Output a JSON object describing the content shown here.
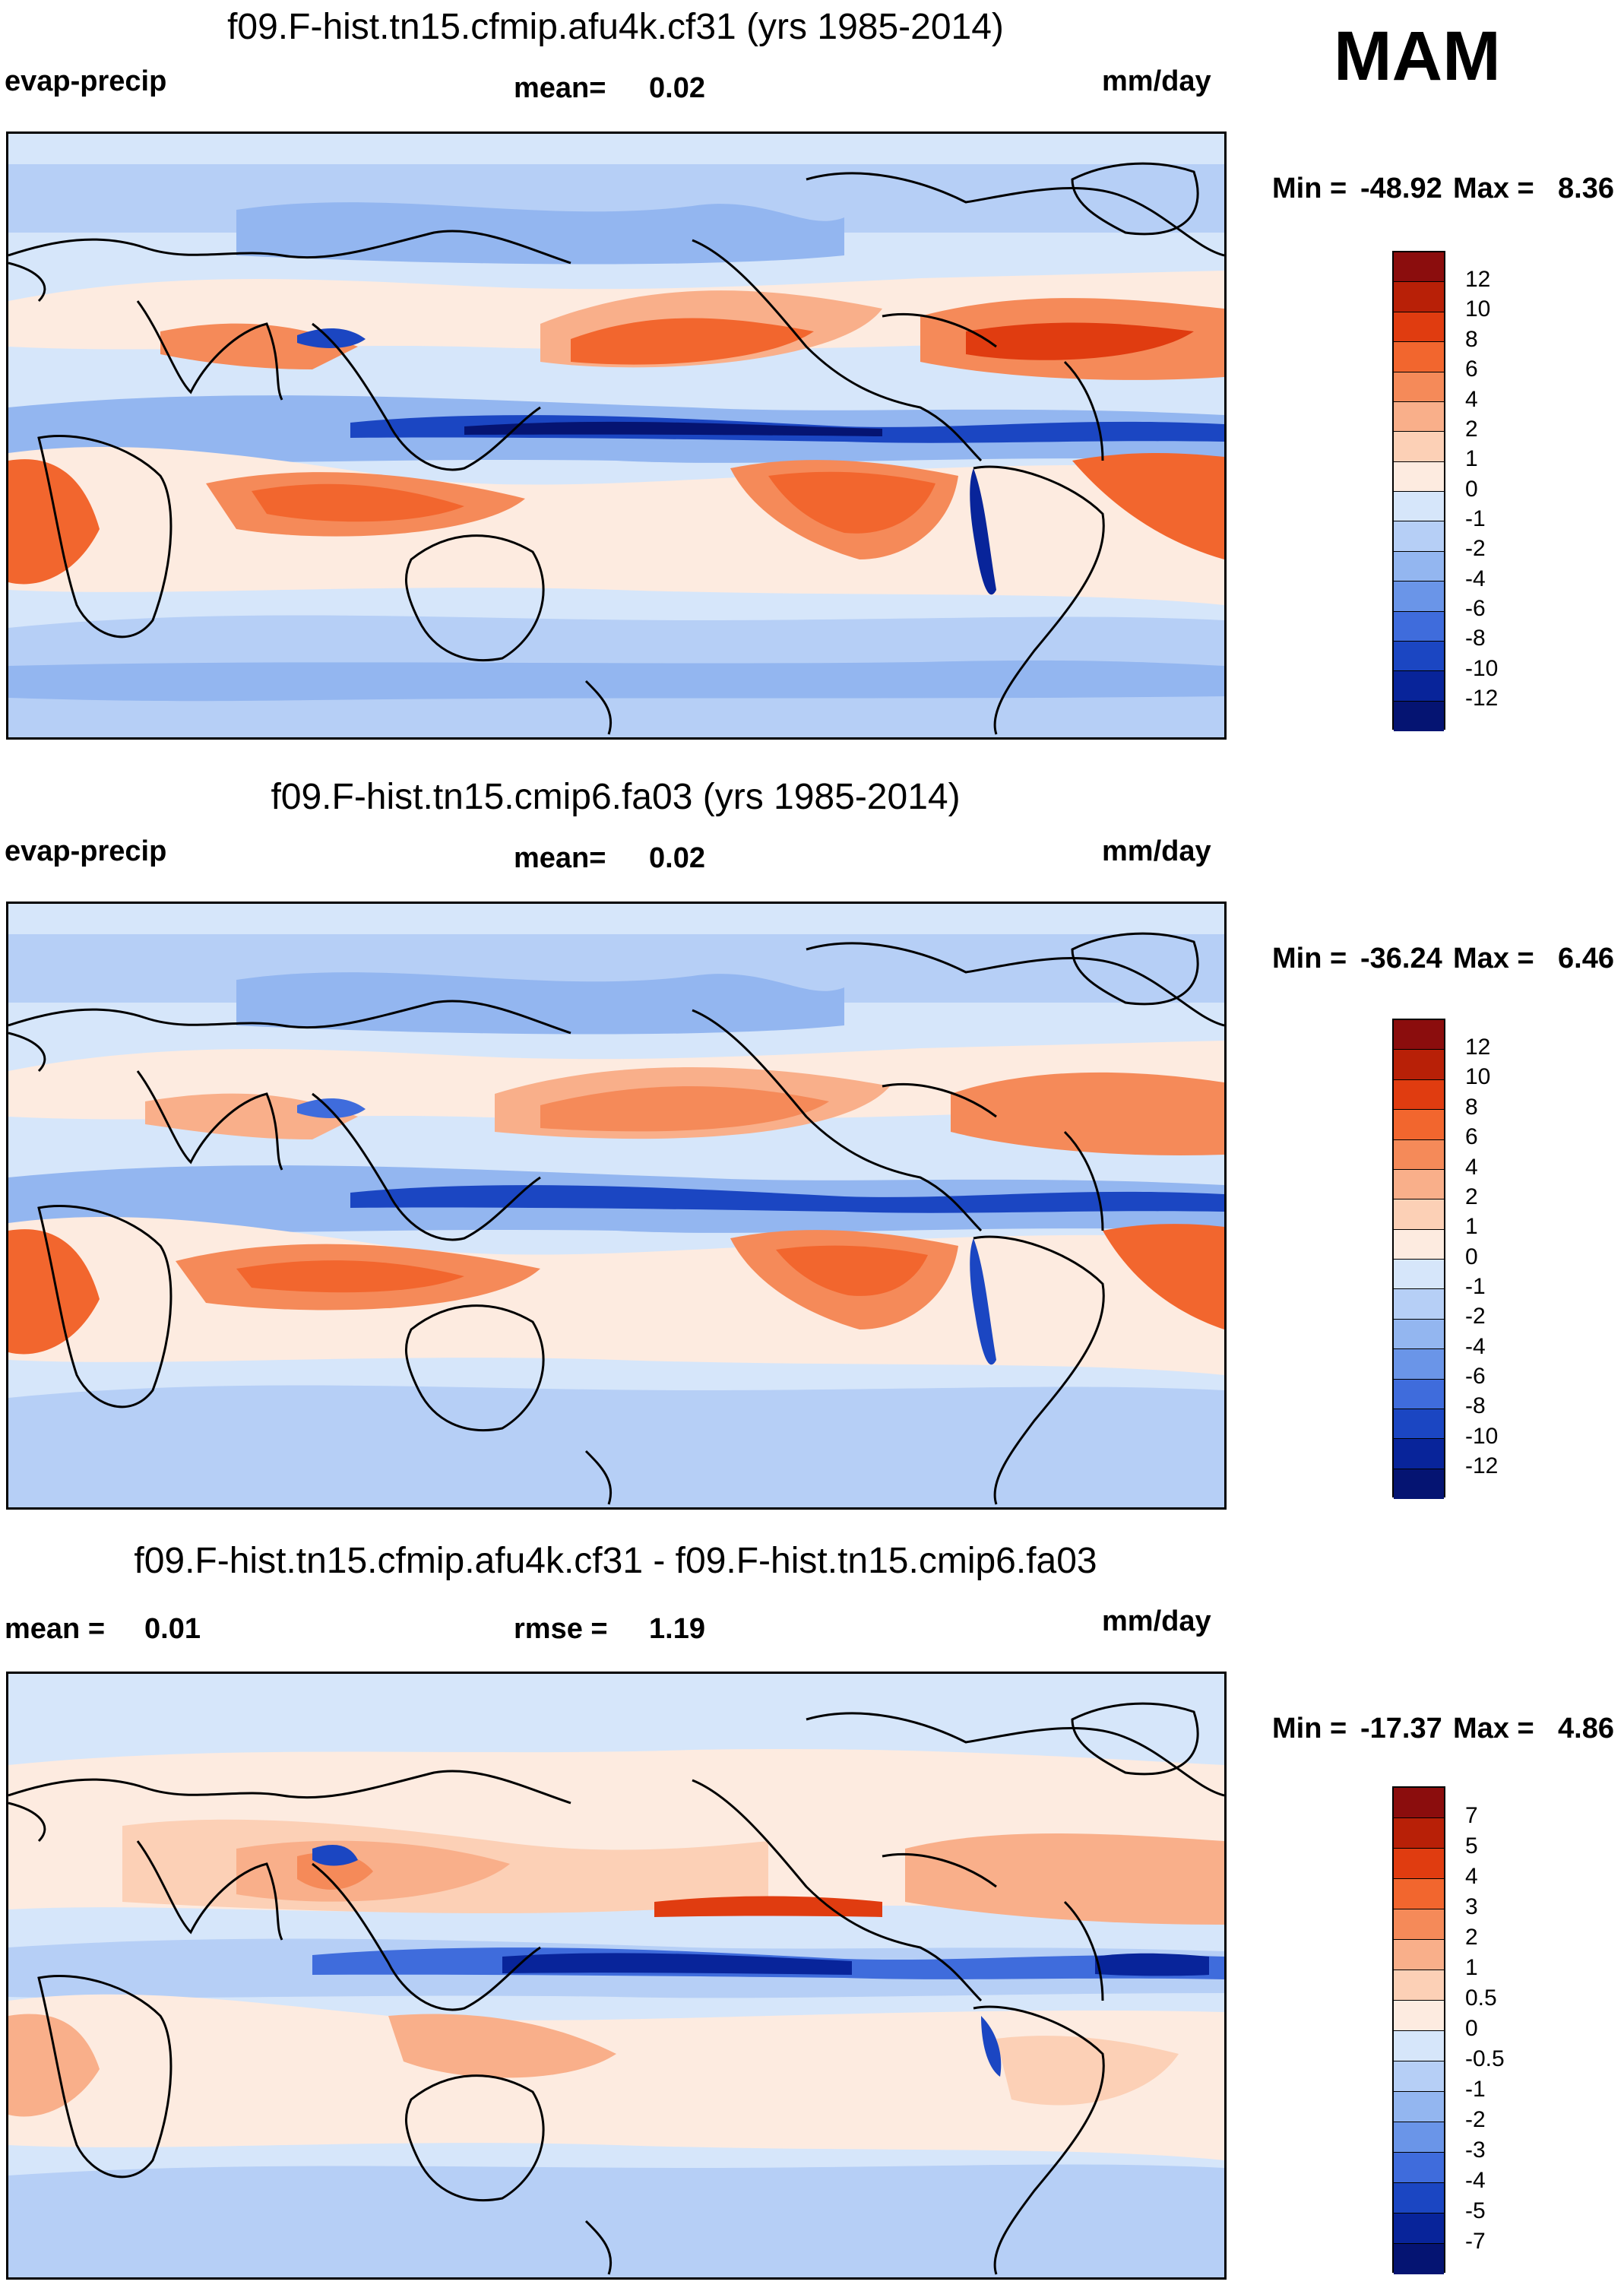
{
  "season": "MAM",
  "panels": [
    {
      "title": "f09.F-hist.tn15.cfmip.afu4k.cf31 (yrs 1985-2014)",
      "left_label": "evap-precip",
      "mean_label": "mean=",
      "mean_value": "0.02",
      "units": "mm/day",
      "min_label": "Min =",
      "min_value": "-48.92",
      "max_label": "Max =",
      "max_value": "8.36",
      "colorbar_labels": [
        "12",
        "10",
        "8",
        "6",
        "4",
        "2",
        "1",
        "0",
        "-1",
        "-2",
        "-4",
        "-6",
        "-8",
        "-10",
        "-12"
      ]
    },
    {
      "title": "f09.F-hist.tn15.cmip6.fa03 (yrs 1985-2014)",
      "left_label": "evap-precip",
      "mean_label": "mean=",
      "mean_value": "0.02",
      "units": "mm/day",
      "min_label": "Min =",
      "min_value": "-36.24",
      "max_label": "Max =",
      "max_value": "6.46",
      "colorbar_labels": [
        "12",
        "10",
        "8",
        "6",
        "4",
        "2",
        "1",
        "0",
        "-1",
        "-2",
        "-4",
        "-6",
        "-8",
        "-10",
        "-12"
      ]
    },
    {
      "title": "f09.F-hist.tn15.cfmip.afu4k.cf31 - f09.F-hist.tn15.cmip6.fa03",
      "mean_label": "mean =",
      "mean_value": "0.01",
      "rmse_label": "rmse =",
      "rmse_value": "1.19",
      "units": "mm/day",
      "min_label": "Min =",
      "min_value": "-17.37",
      "max_label": "Max =",
      "max_value": "4.86",
      "colorbar_labels": [
        "7",
        "5",
        "4",
        "3",
        "2",
        "1",
        "0.5",
        "0",
        "-0.5",
        "-1",
        "-2",
        "-3",
        "-4",
        "-5",
        "-7"
      ]
    }
  ],
  "colors": {
    "colorbar": [
      "#8b0d0d",
      "#b82007",
      "#e03c10",
      "#f2662e",
      "#f58a59",
      "#f9af8a",
      "#fcd0b6",
      "#fdebe0",
      "#d6e6fa",
      "#b6cff6",
      "#93b6f0",
      "#6a95e8",
      "#3f6cdc",
      "#1b46c2",
      "#08249a",
      "#051472"
    ],
    "land_outline": "#000000",
    "ocean_base": "#d6e6fa"
  }
}
